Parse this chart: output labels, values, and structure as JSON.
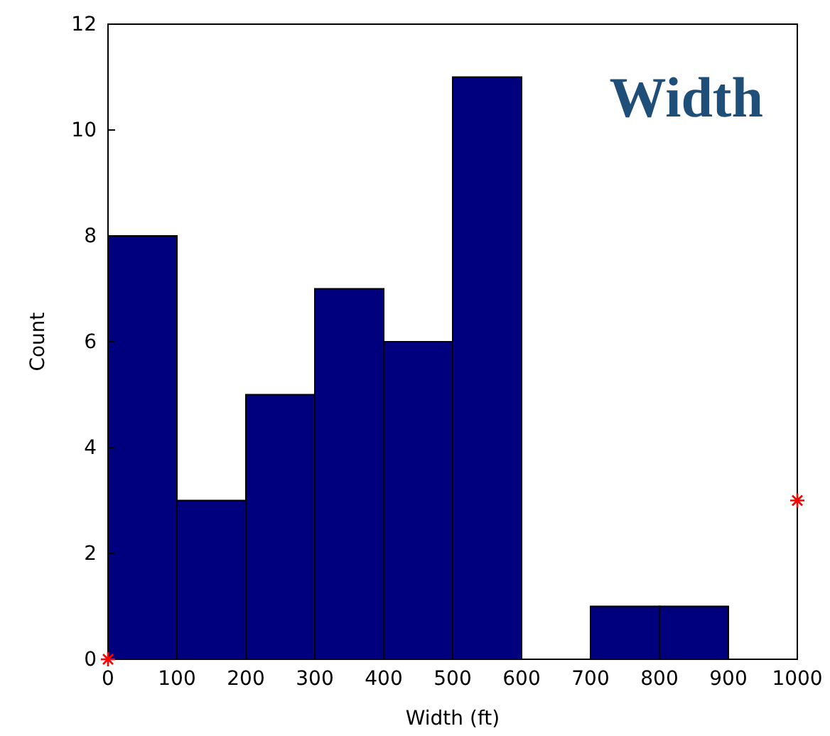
{
  "chart_data": {
    "type": "histogram",
    "title": "Width",
    "xlabel": "Width (ft)",
    "ylabel": "Count",
    "bins": [
      0,
      100,
      200,
      300,
      400,
      500,
      600,
      700,
      800,
      900,
      1000
    ],
    "values": [
      8,
      3,
      5,
      7,
      6,
      11,
      0,
      1,
      1,
      0
    ],
    "color": "#00007f",
    "series": [
      {
        "type": "scatter",
        "x": [
          0,
          1000
        ],
        "values": [
          0,
          3
        ],
        "color": "#ff0000",
        "marker": "cross"
      }
    ],
    "xlim": [
      0,
      1000
    ],
    "xticks": [
      0,
      100,
      200,
      300,
      400,
      500,
      600,
      700,
      800,
      900,
      1000
    ],
    "ylim": [
      0,
      12
    ],
    "yticks": [
      0,
      2,
      4,
      6,
      8,
      10,
      12
    ]
  }
}
